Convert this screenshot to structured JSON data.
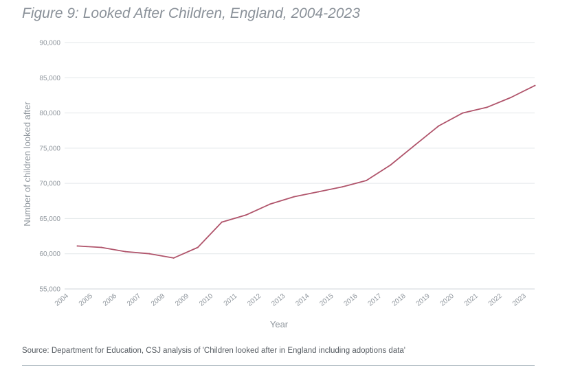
{
  "chart_data": {
    "type": "line",
    "title": "Figure 9: Looked After Children, England, 2004-2023",
    "xlabel": "Year",
    "ylabel": "Number of children looked after",
    "ylim": [
      55000,
      90000
    ],
    "yticks": [
      55000,
      60000,
      65000,
      70000,
      75000,
      80000,
      85000,
      90000
    ],
    "ytick_labels": [
      "55,000",
      "60,000",
      "65,000",
      "70,000",
      "75,000",
      "80,000",
      "85,000",
      "90,000"
    ],
    "categories": [
      "2004",
      "2005",
      "2006",
      "2007",
      "2008",
      "2009",
      "2010",
      "2011",
      "2012",
      "2013",
      "2014",
      "2015",
      "2016",
      "2017",
      "2018",
      "2019",
      "2020",
      "2021",
      "2022",
      "2023"
    ],
    "point_years": [
      "2004",
      "2005",
      "2006",
      "2007",
      "2008",
      "2009",
      "2010",
      "2011",
      "2012",
      "2013",
      "2014",
      "2015",
      "2016",
      "2017",
      "2018",
      "2019",
      "2020",
      "2021",
      "2022",
      "2023"
    ],
    "series": [
      {
        "values": [
          61100,
          60900,
          60300,
          60000,
          59400,
          60900,
          64500,
          65500,
          67050,
          68100,
          68800,
          69500,
          70400,
          72600,
          75400,
          78150,
          80000,
          80800,
          82200,
          83900
        ],
        "color": "#b0546b"
      }
    ],
    "grid": true,
    "legend": "none"
  },
  "source": "Source: Department for Education, CSJ analysis of 'Children looked after in England including adoptions data'"
}
